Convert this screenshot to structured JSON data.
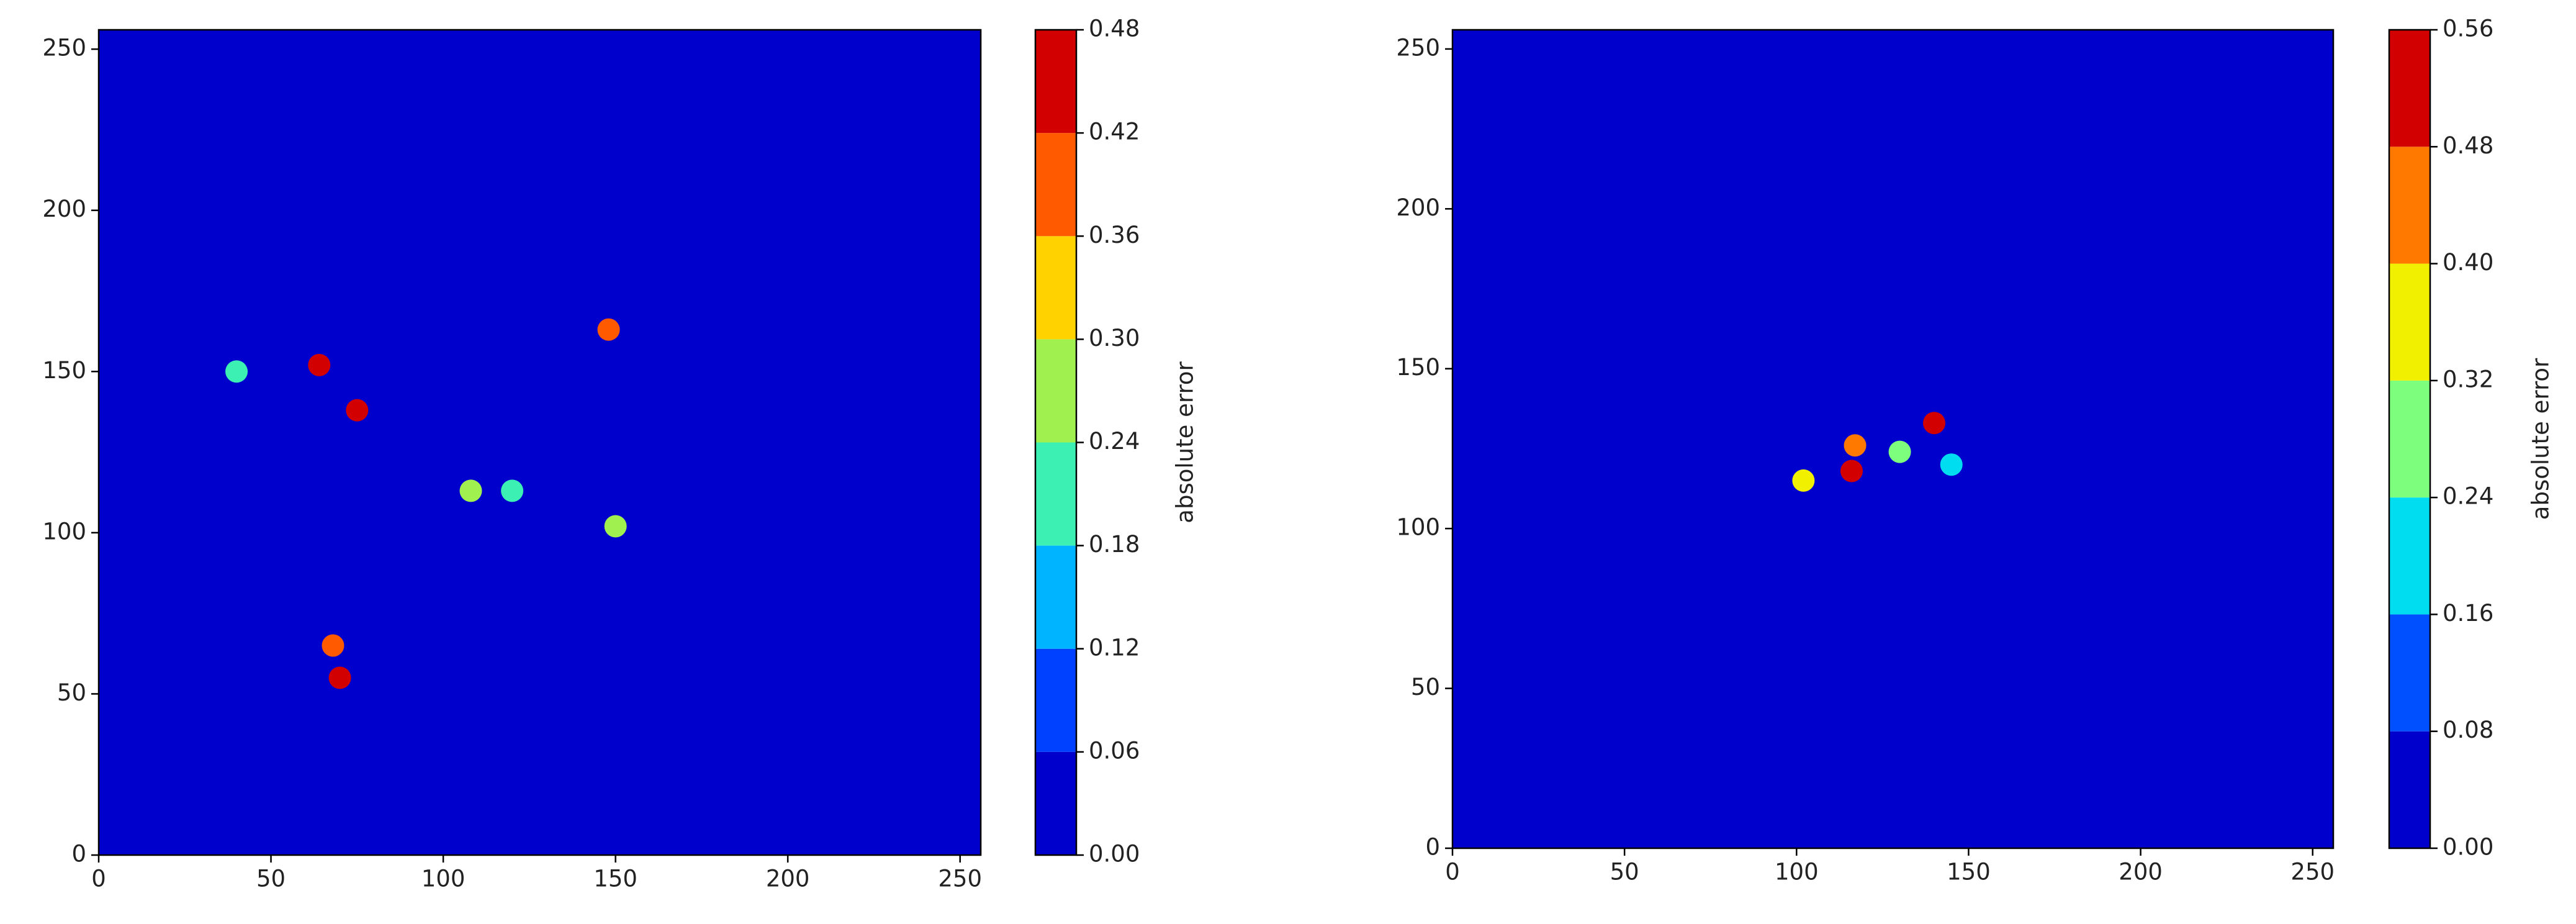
{
  "chart_data": [
    {
      "type": "contourf",
      "xlim": [
        0,
        256
      ],
      "ylim": [
        0,
        256
      ],
      "xticks": [
        0,
        50,
        100,
        150,
        200,
        250
      ],
      "yticks": [
        0,
        50,
        100,
        150,
        200,
        250
      ],
      "colorbar_label": "absolute error",
      "clim": [
        0,
        0.48
      ],
      "cticks": [
        {
          "value": 0,
          "label": "0.00"
        },
        0.06,
        0.12,
        0.18,
        0.24,
        {
          "value": 0.3,
          "label": "0.30"
        },
        0.36,
        0.42,
        0.48
      ],
      "colors": [
        "#0000cc",
        "#0040ff",
        "#00b4ff",
        "#3cf0b4",
        "#a0f050",
        "#ffd200",
        "#ff5a00",
        "#d20000"
      ],
      "points": {
        "x": [
          64,
          75,
          70,
          68,
          108,
          148,
          150,
          120,
          40
        ],
        "y": [
          152,
          138,
          55,
          65,
          113,
          163,
          102,
          113,
          150
        ],
        "values": [
          0.45,
          0.43,
          0.46,
          0.38,
          0.3,
          0.4,
          0.28,
          0.22,
          0.2
        ]
      }
    },
    {
      "type": "contourf",
      "xlim": [
        0,
        256
      ],
      "ylim": [
        0,
        256
      ],
      "xticks": [
        0,
        50,
        100,
        150,
        200,
        250
      ],
      "yticks": [
        0,
        50,
        100,
        150,
        200,
        250
      ],
      "colorbar_label": "absolute error",
      "clim": [
        0,
        0.56
      ],
      "cticks": [
        {
          "value": 0,
          "label": "0.00"
        },
        0.08,
        0.16,
        0.24,
        0.32,
        {
          "value": 0.4,
          "label": "0.40"
        },
        0.48,
        0.56
      ],
      "colors": [
        "#0000cc",
        "#0050ff",
        "#00dcf0",
        "#7dff7d",
        "#f0f000",
        "#ff7800",
        "#d20000"
      ],
      "points": {
        "x": [
          116,
          140,
          102,
          130,
          117,
          145
        ],
        "y": [
          118,
          133,
          115,
          124,
          126,
          120
        ],
        "values": [
          0.52,
          0.53,
          0.36,
          0.3,
          0.42,
          0.2
        ]
      }
    }
  ]
}
